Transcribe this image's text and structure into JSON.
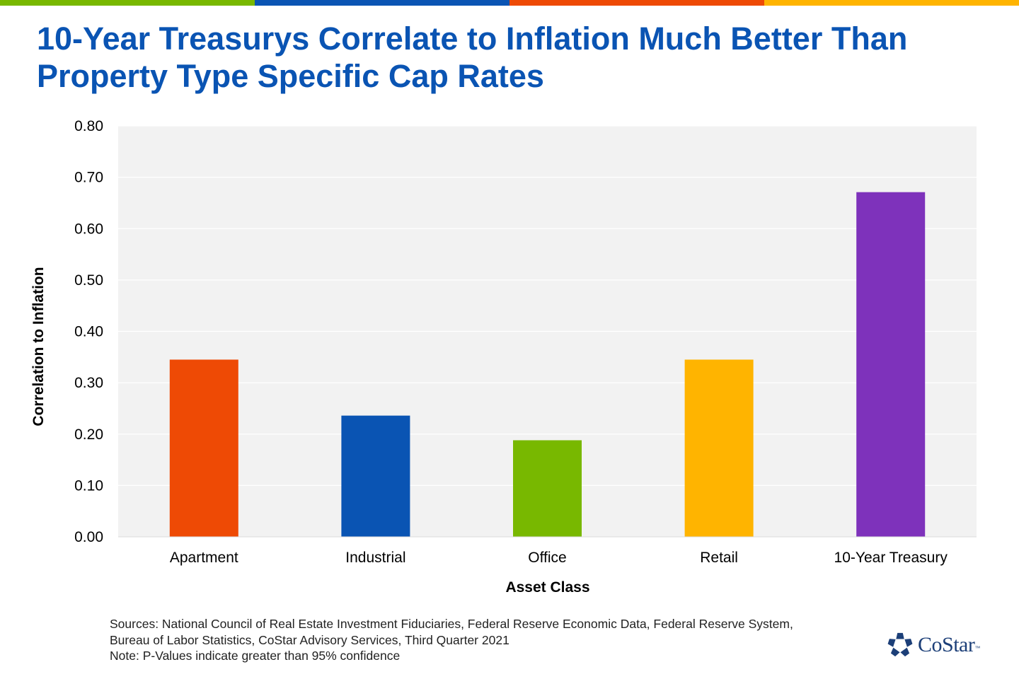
{
  "topbar_colors": [
    "#78b800",
    "#0a54b3",
    "#ee4a05",
    "#ffb400"
  ],
  "title_lines": [
    "10-Year Treasurys Correlate to Inflation Much Better Than",
    "Property Type Specific Cap Rates"
  ],
  "chart_data": {
    "type": "bar",
    "categories": [
      "Apartment",
      "Industrial",
      "Office",
      "Retail",
      "10-Year Treasury"
    ],
    "values": [
      0.345,
      0.236,
      0.188,
      0.345,
      0.671
    ],
    "colors": [
      "#ee4a05",
      "#0a54b3",
      "#78b800",
      "#ffb400",
      "#7e32bb"
    ],
    "xlabel": "Asset Class",
    "ylabel": "Correlation to Inflation",
    "ylim": [
      0,
      0.8
    ],
    "yticks": [
      "0.00",
      "0.10",
      "0.20",
      "0.30",
      "0.40",
      "0.50",
      "0.60",
      "0.70",
      "0.80"
    ],
    "grid": true,
    "plot_background": "#f2f2f2"
  },
  "footer": {
    "line1": "Sources: National Council of Real Estate Investment Fiduciaries, Federal Reserve Economic Data, Federal Reserve System,",
    "line2": "Bureau of Labor Statistics, CoStar Advisory Services, Third Quarter 2021",
    "line3": "Note: P-Values indicate greater than 95% confidence"
  },
  "logo": {
    "text": "CoStar",
    "tm": "™",
    "icon": "costar-star-icon",
    "color": "#1c3f78"
  }
}
